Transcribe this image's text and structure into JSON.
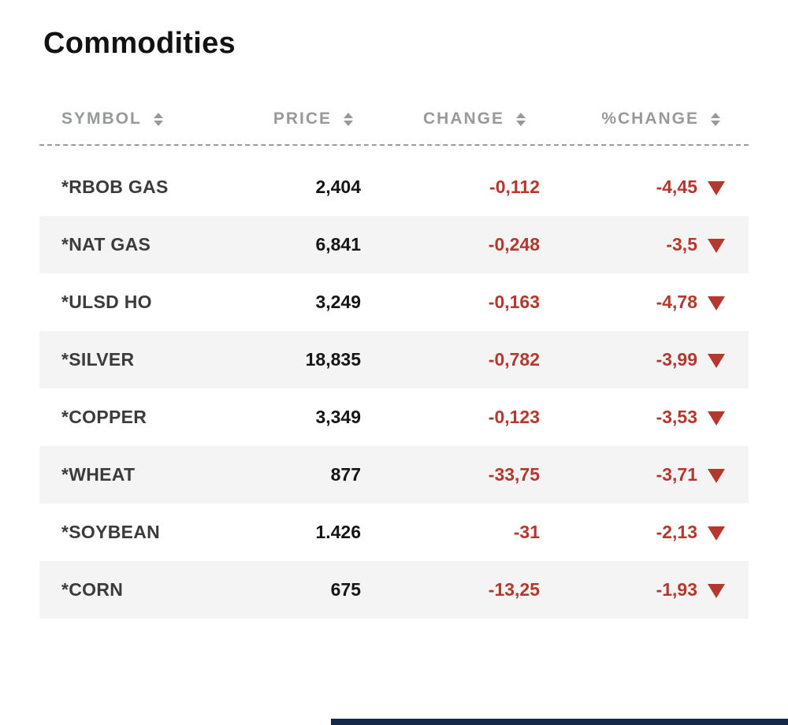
{
  "title": "Commodities",
  "table": {
    "columns": [
      {
        "label": "SYMBOL"
      },
      {
        "label": "PRICE"
      },
      {
        "label": "CHANGE"
      },
      {
        "label": "%CHANGE"
      }
    ],
    "rows": [
      {
        "symbol": "*RBOB GAS",
        "price": "2,404",
        "change": "-0,112",
        "pct_change": "-4,45",
        "direction": "down"
      },
      {
        "symbol": "*NAT GAS",
        "price": "6,841",
        "change": "-0,248",
        "pct_change": "-3,5",
        "direction": "down"
      },
      {
        "symbol": "*ULSD HO",
        "price": "3,249",
        "change": "-0,163",
        "pct_change": "-4,78",
        "direction": "down"
      },
      {
        "symbol": "*SILVER",
        "price": "18,835",
        "change": "-0,782",
        "pct_change": "-3,99",
        "direction": "down"
      },
      {
        "symbol": "*COPPER",
        "price": "3,349",
        "change": "-0,123",
        "pct_change": "-3,53",
        "direction": "down"
      },
      {
        "symbol": "*WHEAT",
        "price": "877",
        "change": "-33,75",
        "pct_change": "-3,71",
        "direction": "down"
      },
      {
        "symbol": "*SOYBEAN",
        "price": "1.426",
        "change": "-31",
        "pct_change": "-2,13",
        "direction": "down"
      },
      {
        "symbol": "*CORN",
        "price": "675",
        "change": "-13,25",
        "pct_change": "-1,93",
        "direction": "down"
      }
    ]
  },
  "icons": {
    "sort": "sort-icon",
    "down_indicator": "down-triangle-icon"
  },
  "colors": {
    "negative": "#b5382f",
    "header_text": "#98999b",
    "row_alt_background": "#f4f4f4",
    "footer_bar": "#16284a"
  }
}
